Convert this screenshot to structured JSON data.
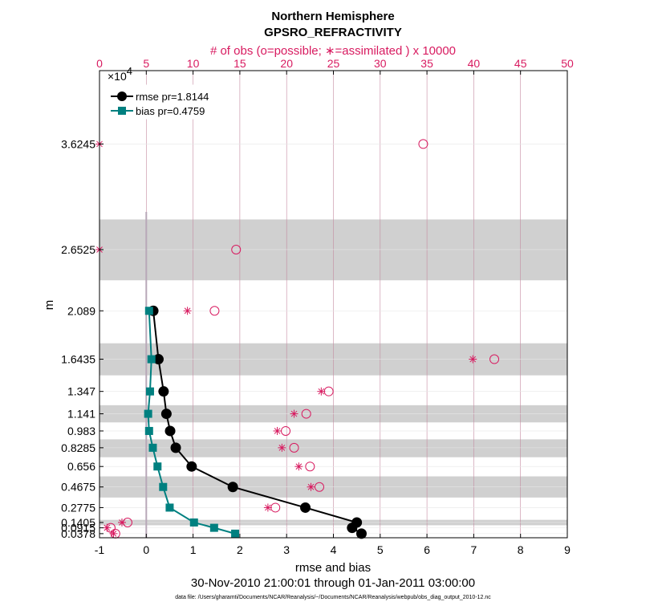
{
  "chart_data": {
    "type": "line",
    "title": "Northern Hemisphere",
    "subtitle": "GPSRO_REFRACTIVITY",
    "top_axis_label": "# of obs (o=possible; ∗=assimilated ) x 10000",
    "top_axis_multiplier": "×10",
    "top_axis_multiplier_exp": "4",
    "xlabel": "rmse and bias",
    "ylabel": "m",
    "date_range": "30-Nov-2010 21:00:01 through 01-Jan-2011 03:00:00",
    "footer": "data file: /Users/gharamti/Documents/NCAR/Reanalysis/~/Documents/NCAR/Reanalysis/webpub/obs_diag_output_2010-12.nc",
    "xlim": [
      -1,
      9
    ],
    "xticks": [
      -1,
      0,
      1,
      2,
      3,
      4,
      5,
      6,
      7,
      8,
      9
    ],
    "top_xlim": [
      0,
      50
    ],
    "top_xticks": [
      0,
      5,
      10,
      15,
      20,
      25,
      30,
      35,
      40,
      45,
      50
    ],
    "levels": [
      0.0378,
      0.0915,
      0.1405,
      0.2775,
      0.4675,
      0.656,
      0.8285,
      0.983,
      1.141,
      1.347,
      1.6435,
      2.089,
      2.6525,
      3.6245
    ],
    "ytick_labels": [
      "0.0378",
      "0.0915",
      "0.1405",
      "0.2775",
      "0.4675",
      "0.656",
      "0.8285",
      "0.983",
      "1.141",
      "1.347",
      "1.6435",
      "2.089",
      "2.6525",
      "3.6245"
    ],
    "bands": [
      [
        0.115,
        0.165
      ],
      [
        0.37,
        0.565
      ],
      [
        0.741,
        0.906
      ],
      [
        1.062,
        1.22
      ],
      [
        1.495,
        1.79
      ],
      [
        2.37,
        2.93
      ]
    ],
    "series": [
      {
        "name": "rmse pr=1.8144",
        "color": "#000000",
        "marker": "circle",
        "values": [
          4.6,
          4.4,
          4.5,
          3.4,
          1.85,
          0.97,
          0.63,
          0.51,
          0.43,
          0.37,
          0.26,
          0.15,
          null,
          null
        ]
      },
      {
        "name": "bias pr=0.4759",
        "color": "#008080",
        "marker": "square",
        "values": [
          1.9,
          1.45,
          1.02,
          0.5,
          0.36,
          0.24,
          0.14,
          0.06,
          0.04,
          0.08,
          0.11,
          0.06,
          null,
          null
        ]
      }
    ],
    "obs_possible": [
      1.7,
      1.2,
      3.0,
      18.8,
      23.5,
      22.5,
      20.8,
      19.9,
      22.1,
      24.5,
      42.2,
      12.3,
      14.6,
      34.6
    ],
    "obs_assimilated": [
      1.5,
      0.8,
      2.4,
      18.0,
      22.6,
      21.3,
      19.5,
      19.0,
      20.8,
      23.7,
      39.9,
      9.4,
      0,
      0
    ],
    "colors": {
      "obs": "#d81b60",
      "band": "#d0d0d0",
      "grid": "#c48aa0",
      "zero_line": "#b8a8b8"
    }
  }
}
